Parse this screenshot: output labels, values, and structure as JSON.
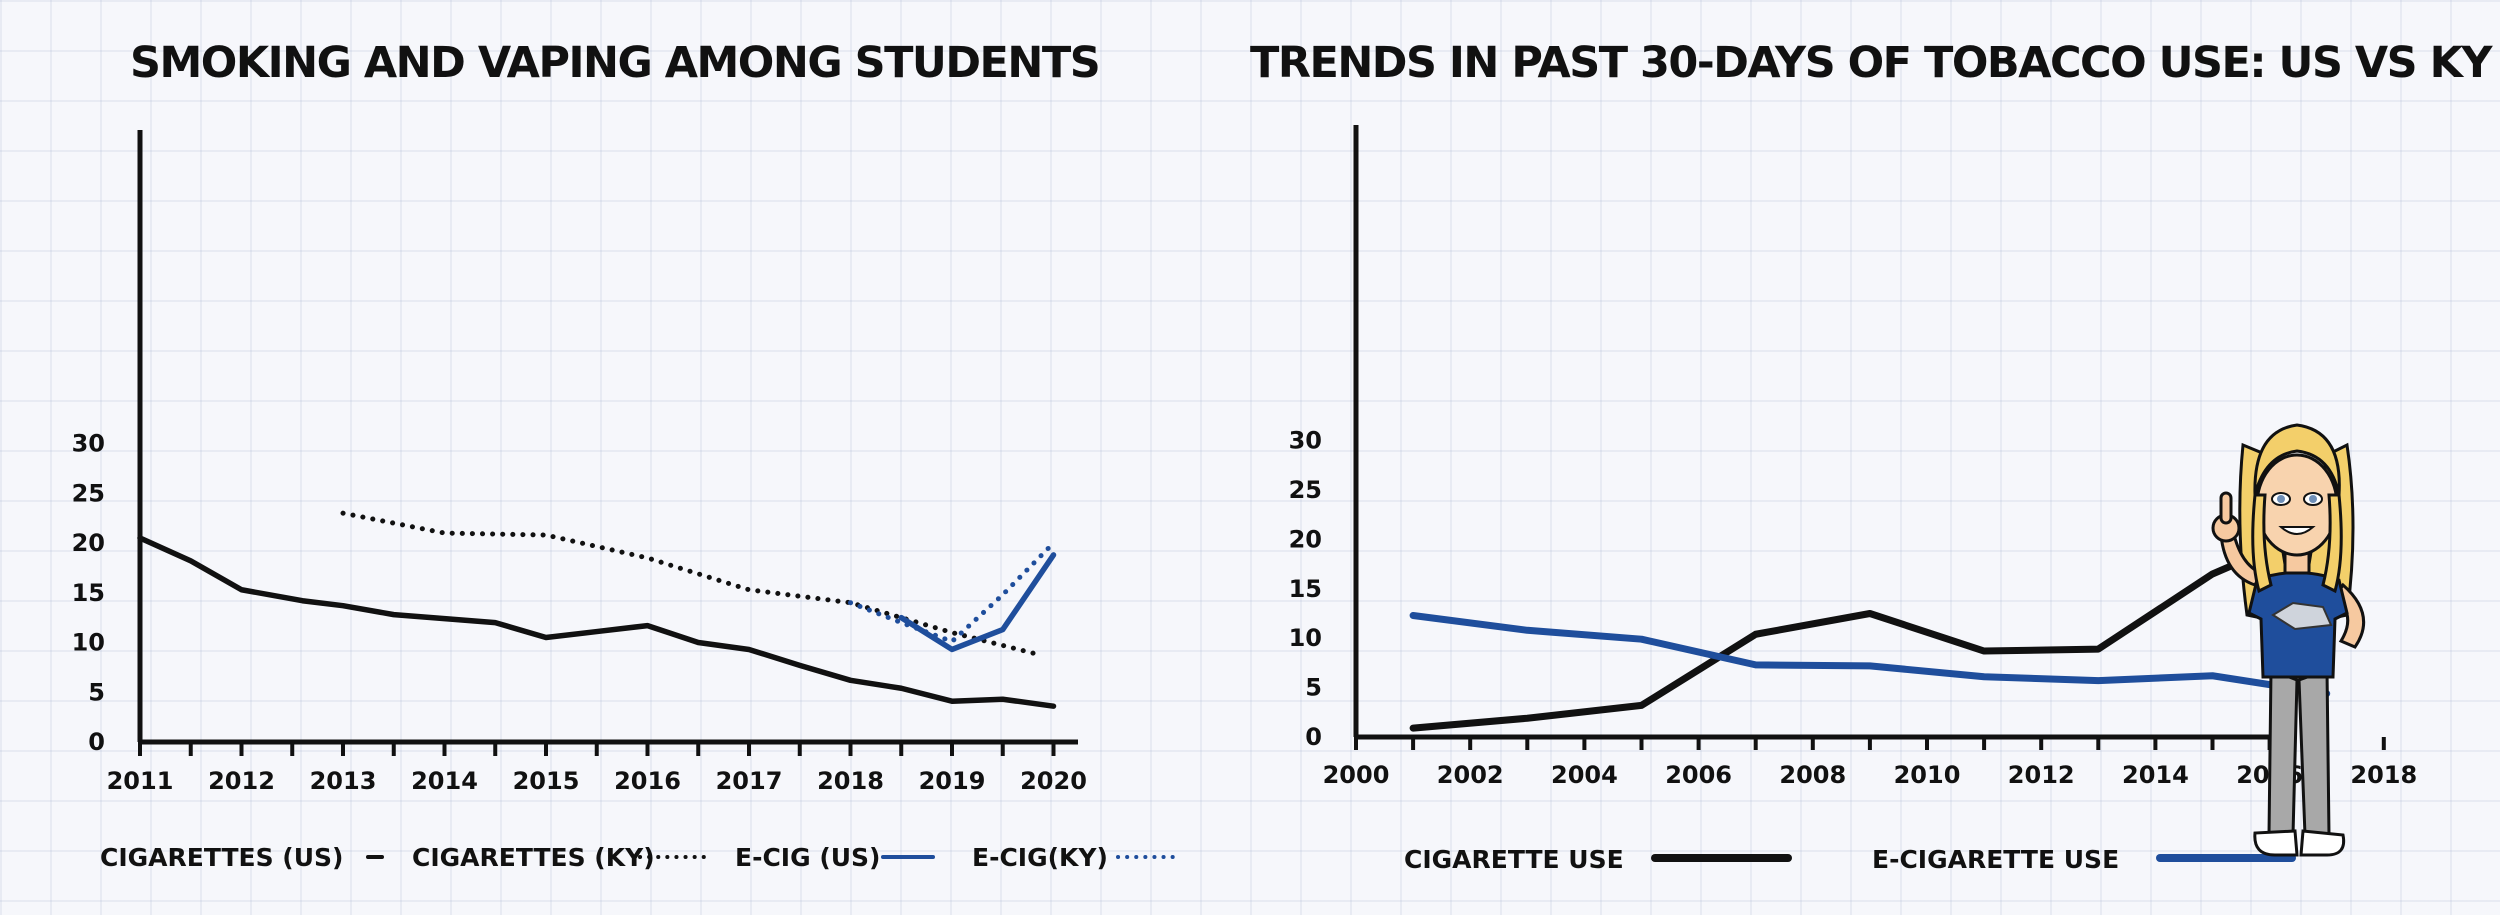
{
  "chart_data": [
    {
      "type": "line",
      "title": "SMOKING AND VAPING AMONG STUDENTS",
      "xlabel": "",
      "ylabel": "",
      "ylim": [
        0,
        30
      ],
      "yticks": [
        "0",
        "5",
        "10",
        "15",
        "20",
        "25",
        "30"
      ],
      "xticks": [
        "2011",
        "2012",
        "2013",
        "2014",
        "2015",
        "2016",
        "2017",
        "2018",
        "2019",
        "2020"
      ],
      "legend": "bottom",
      "series": [
        {
          "name": "CIGARETTES (US)",
          "color": "#111111",
          "style": "solid",
          "x": [
            2011,
            2011.5,
            2012,
            2012.6,
            2013,
            2013.5,
            2014,
            2014.5,
            2015,
            2015.5,
            2016,
            2016.5,
            2017,
            2017.5,
            2018,
            2018.5,
            2019,
            2019.5,
            2020
          ],
          "y": [
            20.5,
            18.2,
            15.3,
            14.2,
            13.7,
            12.8,
            12.4,
            12.0,
            10.5,
            11.1,
            11.7,
            10.0,
            9.3,
            7.7,
            6.2,
            5.4,
            4.1,
            4.3,
            3.6
          ]
        },
        {
          "name": "CIGARETTES (KY)",
          "color": "#111111",
          "style": "dotted",
          "x": [
            2013,
            2014,
            2015,
            2016,
            2017,
            2018,
            2019,
            2019.85
          ],
          "y": [
            23.0,
            21.0,
            20.8,
            18.5,
            15.3,
            14.0,
            11.0,
            8.8
          ]
        },
        {
          "name": "E-CIG (US)",
          "color": "#1f4e9c",
          "style": "solid",
          "x": [
            2018.5,
            2019,
            2019.5,
            2020
          ],
          "y": [
            12.5,
            9.3,
            11.3,
            18.8
          ]
        },
        {
          "name": "E-CIG(KY)",
          "color": "#1f4e9c",
          "style": "dotted",
          "x": [
            2018,
            2018.5,
            2019,
            2019.5,
            2020
          ],
          "y": [
            14.0,
            12.0,
            10.1,
            14.8,
            20.0
          ]
        }
      ]
    },
    {
      "type": "line",
      "title": "TRENDS IN PAST 30-DAYS OF TOBACCO USE: US VS KY",
      "xlabel": "",
      "ylabel": "",
      "ylim": [
        0,
        30
      ],
      "xlim": [
        2000,
        2018
      ],
      "yticks": [
        "0",
        "5",
        "10",
        "15",
        "20",
        "25",
        "30"
      ],
      "xticks": [
        "2000",
        "2002",
        "2004",
        "2006",
        "2008",
        "2010",
        "2012",
        "2014",
        "2016",
        "2018"
      ],
      "legend": "bottom",
      "series": [
        {
          "name": "CIGARETTE USE",
          "color": "#111111",
          "style": "solid",
          "x": [
            2001,
            2003,
            2005,
            2007,
            2009,
            2011,
            2013,
            2015,
            2017
          ],
          "y": [
            0.9,
            1.9,
            3.2,
            10.4,
            12.5,
            8.7,
            8.9,
            16.5,
            21.5
          ]
        },
        {
          "name": "E-CIGARETTE USE",
          "color": "#1f4e9c",
          "style": "solid",
          "x": [
            2001,
            2003,
            2005,
            2007,
            2009,
            2011,
            2013,
            2015,
            2017
          ],
          "y": [
            12.3,
            10.8,
            9.9,
            7.3,
            7.2,
            6.1,
            5.7,
            6.2,
            4.4
          ]
        }
      ]
    }
  ],
  "avatar": {
    "name": "character-avatar",
    "shirt_color": "#1f4e9c",
    "hair_color": "#f3cf6a"
  }
}
